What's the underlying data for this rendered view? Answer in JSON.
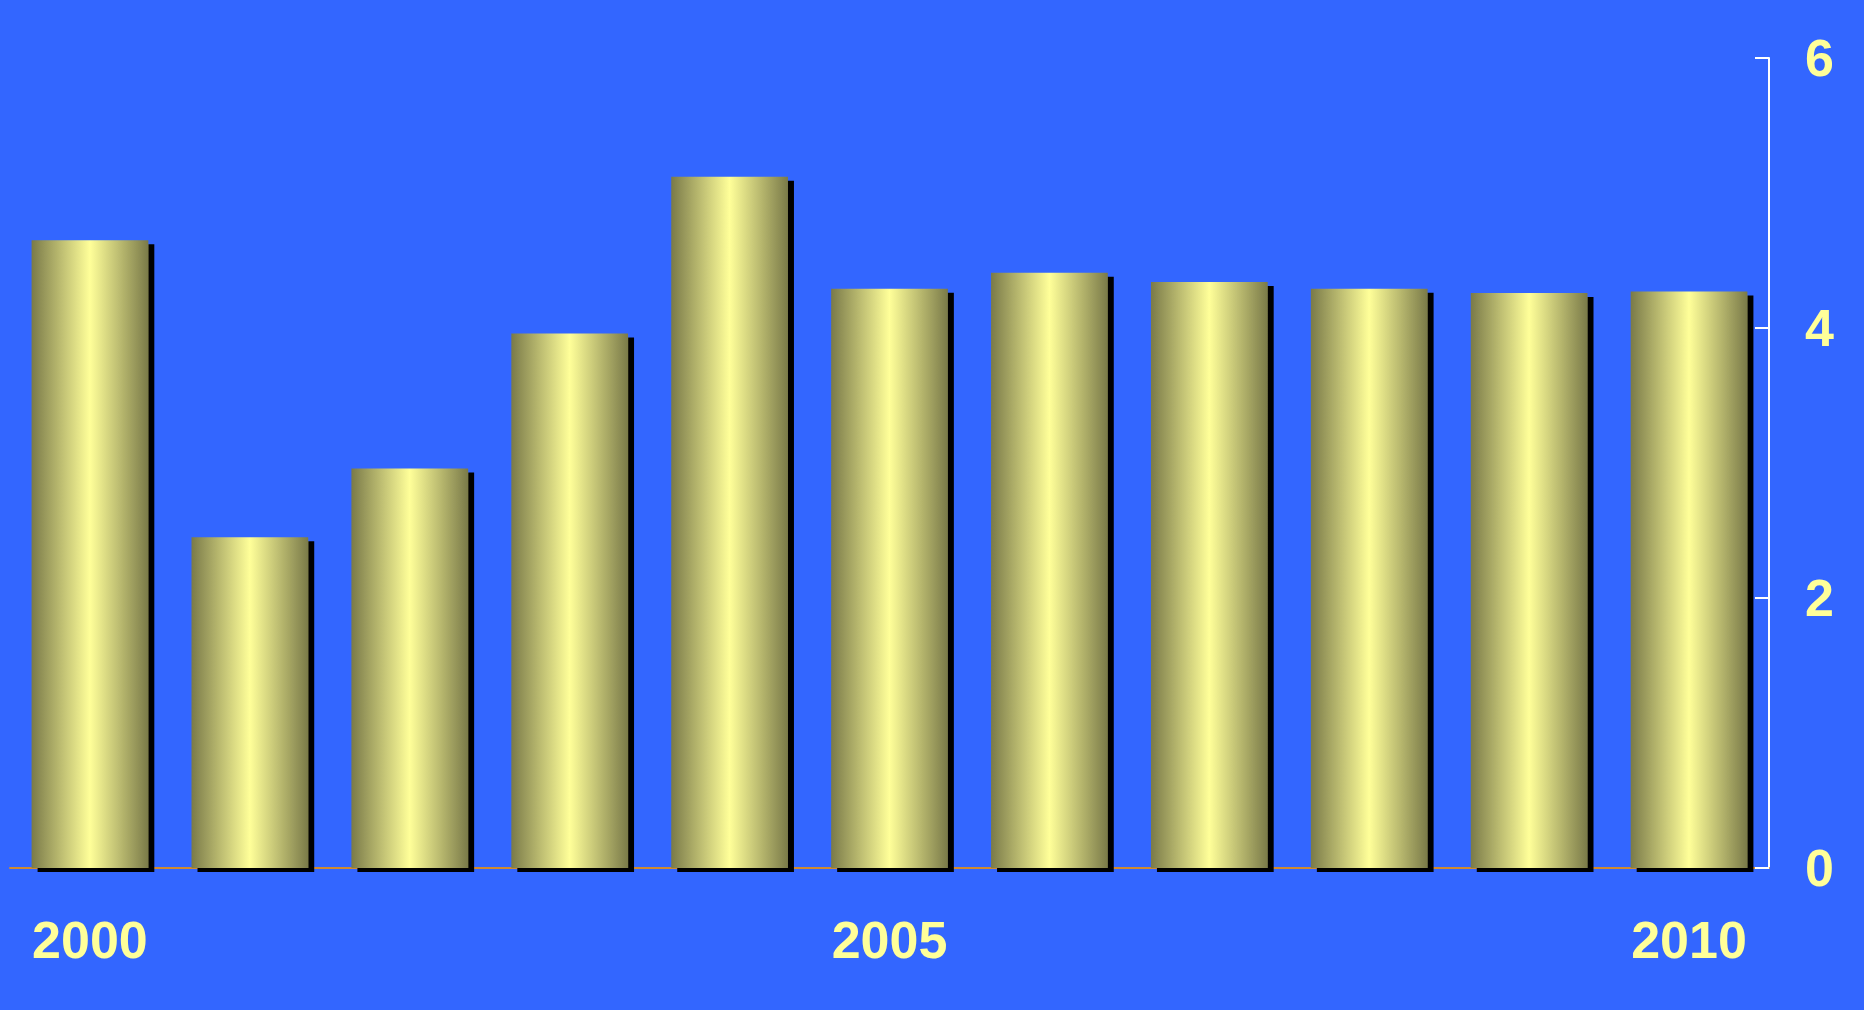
{
  "chart_data": {
    "type": "bar",
    "categories": [
      "2000",
      null,
      null,
      null,
      null,
      "2005",
      null,
      null,
      null,
      null,
      "2010"
    ],
    "values": [
      4.65,
      2.45,
      2.96,
      3.96,
      5.12,
      4.29,
      4.41,
      4.34,
      4.29,
      4.26,
      4.27
    ],
    "color": "#ffff99",
    "ylim": [
      0,
      6
    ],
    "yticks": [
      0,
      2,
      4,
      6
    ],
    "grid": false
  }
}
